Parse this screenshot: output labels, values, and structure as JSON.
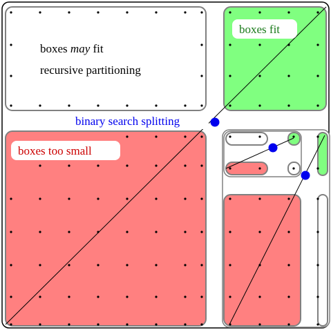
{
  "labels": {
    "may_fit_pre": "boxes ",
    "may_fit_em": "may",
    "may_fit_post": " fit",
    "recursive": "recursive partitioning",
    "boxes_fit": "boxes fit",
    "too_small": "boxes too small",
    "binary_search": "binary search splitting"
  },
  "colors": {
    "fit_fill": "#80ff80",
    "small_fill": "#ff8080",
    "box_stroke": "#808080",
    "frame_stroke": "#000000",
    "split_point": "#0000ee",
    "dot": "#000000"
  }
}
